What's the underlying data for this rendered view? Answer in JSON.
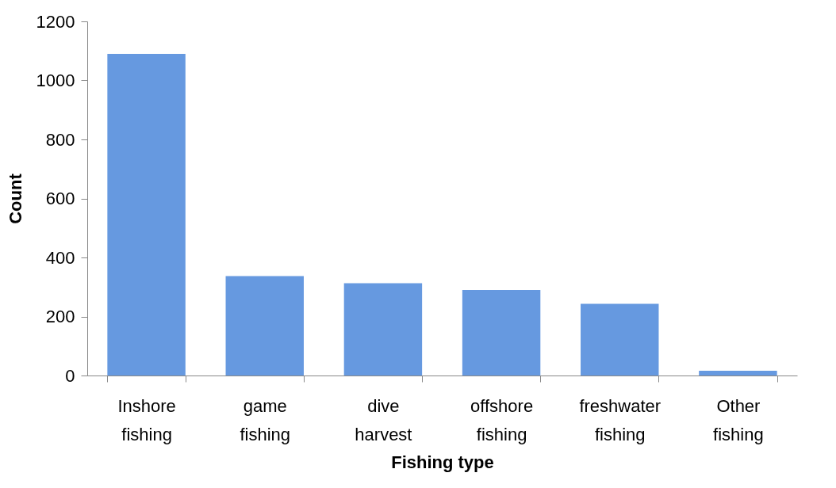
{
  "chart_data": {
    "type": "bar",
    "xlabel": "Fishing type",
    "ylabel": "Count",
    "categories": [
      "Inshore fishing",
      "game fishing",
      "dive harvest",
      "offshore fishing",
      "freshwater fishing",
      "Other fishing"
    ],
    "values": [
      1090,
      337,
      313,
      290,
      243,
      16
    ],
    "color": "#6699e0",
    "ylim": [
      0,
      1200
    ],
    "yticks": [
      0,
      200,
      400,
      600,
      800,
      1000,
      1200
    ],
    "grid": false
  }
}
